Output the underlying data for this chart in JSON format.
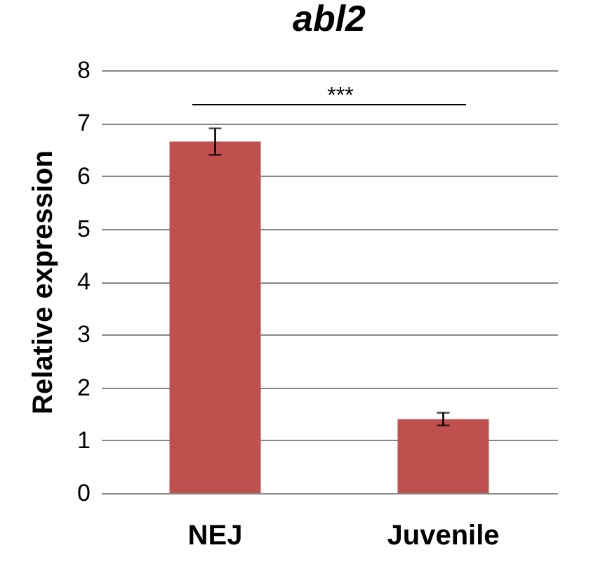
{
  "chart_data": {
    "type": "bar",
    "title": "abl2",
    "ylabel": "Relative expression",
    "categories": [
      "NEJ",
      "Juvenile"
    ],
    "values": [
      6.65,
      1.4
    ],
    "errors": [
      0.25,
      0.12
    ],
    "color": "#c0504d",
    "ylim": [
      0,
      8
    ],
    "yticks": [
      0,
      1,
      2,
      3,
      4,
      5,
      6,
      7,
      8
    ],
    "grid": "y",
    "annotations": [
      "***"
    ]
  }
}
